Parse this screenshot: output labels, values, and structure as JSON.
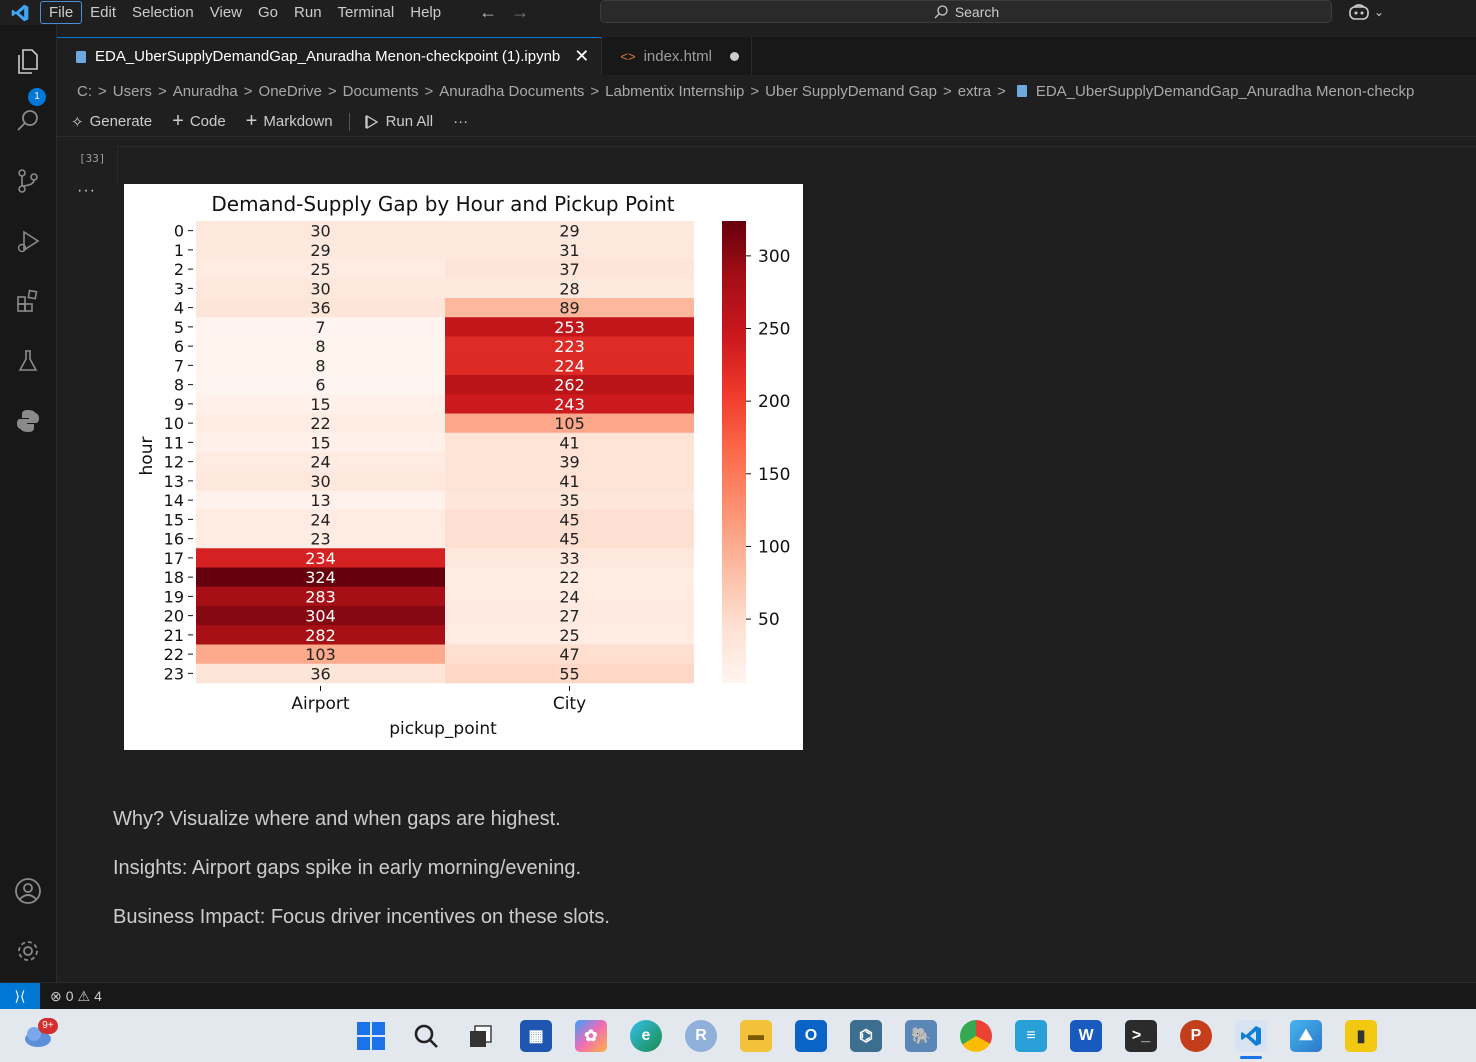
{
  "menu": [
    "File",
    "Edit",
    "Selection",
    "View",
    "Go",
    "Run",
    "Terminal",
    "Help"
  ],
  "search": {
    "label": "Search"
  },
  "activity": {
    "explorer_badge": "1"
  },
  "tabs": [
    {
      "label": "EDA_UberSupplyDemandGap_Anuradha Menon-checkpoint (1).ipynb"
    },
    {
      "label": "index.html"
    }
  ],
  "breadcrumb": [
    "C:",
    "Users",
    "Anuradha",
    "OneDrive",
    "Documents",
    "Anuradha Documents",
    "Labmentix Internship",
    "Uber SupplyDemand Gap",
    "extra",
    "EDA_UberSupplyDemandGap_Anuradha Menon-checkp"
  ],
  "toolbar": {
    "generate": "Generate",
    "code": "Code",
    "markdown": "Markdown",
    "run_all": "Run All",
    "more": "···"
  },
  "cell": {
    "exec_count": "[33]",
    "output_more": "···"
  },
  "chart_data": {
    "type": "heatmap",
    "title": "Demand-Supply Gap by Hour and Pickup Point",
    "xlabel": "pickup_point",
    "ylabel": "hour",
    "columns": [
      "Airport",
      "City"
    ],
    "rows": [
      "0",
      "1",
      "2",
      "3",
      "4",
      "5",
      "6",
      "7",
      "8",
      "9",
      "10",
      "11",
      "12",
      "13",
      "14",
      "15",
      "16",
      "17",
      "18",
      "19",
      "20",
      "21",
      "22",
      "23"
    ],
    "values": [
      [
        30,
        29
      ],
      [
        29,
        31
      ],
      [
        25,
        37
      ],
      [
        30,
        28
      ],
      [
        36,
        89
      ],
      [
        7,
        253
      ],
      [
        8,
        223
      ],
      [
        8,
        224
      ],
      [
        6,
        262
      ],
      [
        15,
        243
      ],
      [
        22,
        105
      ],
      [
        15,
        41
      ],
      [
        24,
        39
      ],
      [
        30,
        41
      ],
      [
        13,
        35
      ],
      [
        24,
        45
      ],
      [
        23,
        45
      ],
      [
        234,
        33
      ],
      [
        324,
        22
      ],
      [
        283,
        24
      ],
      [
        304,
        27
      ],
      [
        282,
        25
      ],
      [
        103,
        47
      ],
      [
        36,
        55
      ]
    ],
    "colormap": "Reds",
    "vmin": 6,
    "vmax": 324,
    "colorbar_ticks": [
      50,
      100,
      150,
      200,
      250,
      300
    ]
  },
  "markdown": [
    "Why? Visualize where and when gaps are highest.",
    "Insights: Airport gaps spike in early morning/evening.",
    "Business Impact: Focus driver incentives on these slots."
  ],
  "status": {
    "errors": "0",
    "warnings": "4"
  },
  "taskbar": {
    "weather_badge": "9+"
  }
}
